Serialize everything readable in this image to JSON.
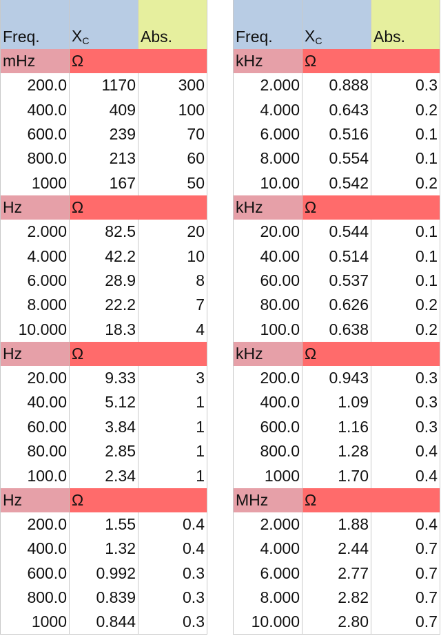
{
  "left": {
    "headers": {
      "freq": "Freq.",
      "xc_main": "X",
      "xc_sub": "C",
      "abs": "Abs."
    },
    "blocks": [
      {
        "unit_freq": "mHz",
        "unit_xc": "Ω",
        "rows": [
          [
            "200.0",
            "1170",
            "300"
          ],
          [
            "400.0",
            "409",
            "100"
          ],
          [
            "600.0",
            "239",
            "70"
          ],
          [
            "800.0",
            "213",
            "60"
          ],
          [
            "1000",
            "167",
            "50"
          ]
        ]
      },
      {
        "unit_freq": "Hz",
        "unit_xc": "Ω",
        "rows": [
          [
            "2.000",
            "82.5",
            "20"
          ],
          [
            "4.000",
            "42.2",
            "10"
          ],
          [
            "6.000",
            "28.9",
            "8"
          ],
          [
            "8.000",
            "22.2",
            "7"
          ],
          [
            "10.000",
            "18.3",
            "4"
          ]
        ]
      },
      {
        "unit_freq": "Hz",
        "unit_xc": "Ω",
        "rows": [
          [
            "20.00",
            "9.33",
            "3"
          ],
          [
            "40.00",
            "5.12",
            "1"
          ],
          [
            "60.00",
            "3.84",
            "1"
          ],
          [
            "80.00",
            "2.85",
            "1"
          ],
          [
            "100.0",
            "2.34",
            "1"
          ]
        ]
      },
      {
        "unit_freq": "Hz",
        "unit_xc": "Ω",
        "rows": [
          [
            "200.0",
            "1.55",
            "0.4"
          ],
          [
            "400.0",
            "1.32",
            "0.4"
          ],
          [
            "600.0",
            "0.992",
            "0.3"
          ],
          [
            "800.0",
            "0.839",
            "0.3"
          ],
          [
            "1000",
            "0.844",
            "0.3"
          ]
        ]
      }
    ]
  },
  "right": {
    "headers": {
      "freq": "Freq.",
      "xc_main": "X",
      "xc_sub": "C",
      "abs": "Abs."
    },
    "blocks": [
      {
        "unit_freq": "kHz",
        "unit_xc": "Ω",
        "rows": [
          [
            "2.000",
            "0.888",
            "0.3"
          ],
          [
            "4.000",
            "0.643",
            "0.2"
          ],
          [
            "6.000",
            "0.516",
            "0.1"
          ],
          [
            "8.000",
            "0.554",
            "0.1"
          ],
          [
            "10.00",
            "0.542",
            "0.2"
          ]
        ]
      },
      {
        "unit_freq": "kHz",
        "unit_xc": "Ω",
        "rows": [
          [
            "20.00",
            "0.544",
            "0.1"
          ],
          [
            "40.00",
            "0.514",
            "0.1"
          ],
          [
            "60.00",
            "0.537",
            "0.1"
          ],
          [
            "80.00",
            "0.626",
            "0.2"
          ],
          [
            "100.0",
            "0.638",
            "0.2"
          ]
        ]
      },
      {
        "unit_freq": "kHz",
        "unit_xc": "Ω",
        "rows": [
          [
            "200.0",
            "0.943",
            "0.3"
          ],
          [
            "400.0",
            "1.09",
            "0.3"
          ],
          [
            "600.0",
            "1.16",
            "0.3"
          ],
          [
            "800.0",
            "1.28",
            "0.4"
          ],
          [
            "1000",
            "1.70",
            "0.4"
          ]
        ]
      },
      {
        "unit_freq": "MHz",
        "unit_xc": "Ω",
        "rows": [
          [
            "2.000",
            "1.88",
            "0.4"
          ],
          [
            "4.000",
            "2.44",
            "0.7"
          ],
          [
            "6.000",
            "2.77",
            "0.7"
          ],
          [
            "8.000",
            "2.82",
            "0.7"
          ],
          [
            "10.000",
            "2.80",
            "0.7"
          ]
        ]
      }
    ]
  },
  "colors": {
    "header_blue": "#b8cce4",
    "header_yellow": "#e6ef9e",
    "unit_pink": "#e6a0a8",
    "unit_red": "#ff6b6b"
  }
}
